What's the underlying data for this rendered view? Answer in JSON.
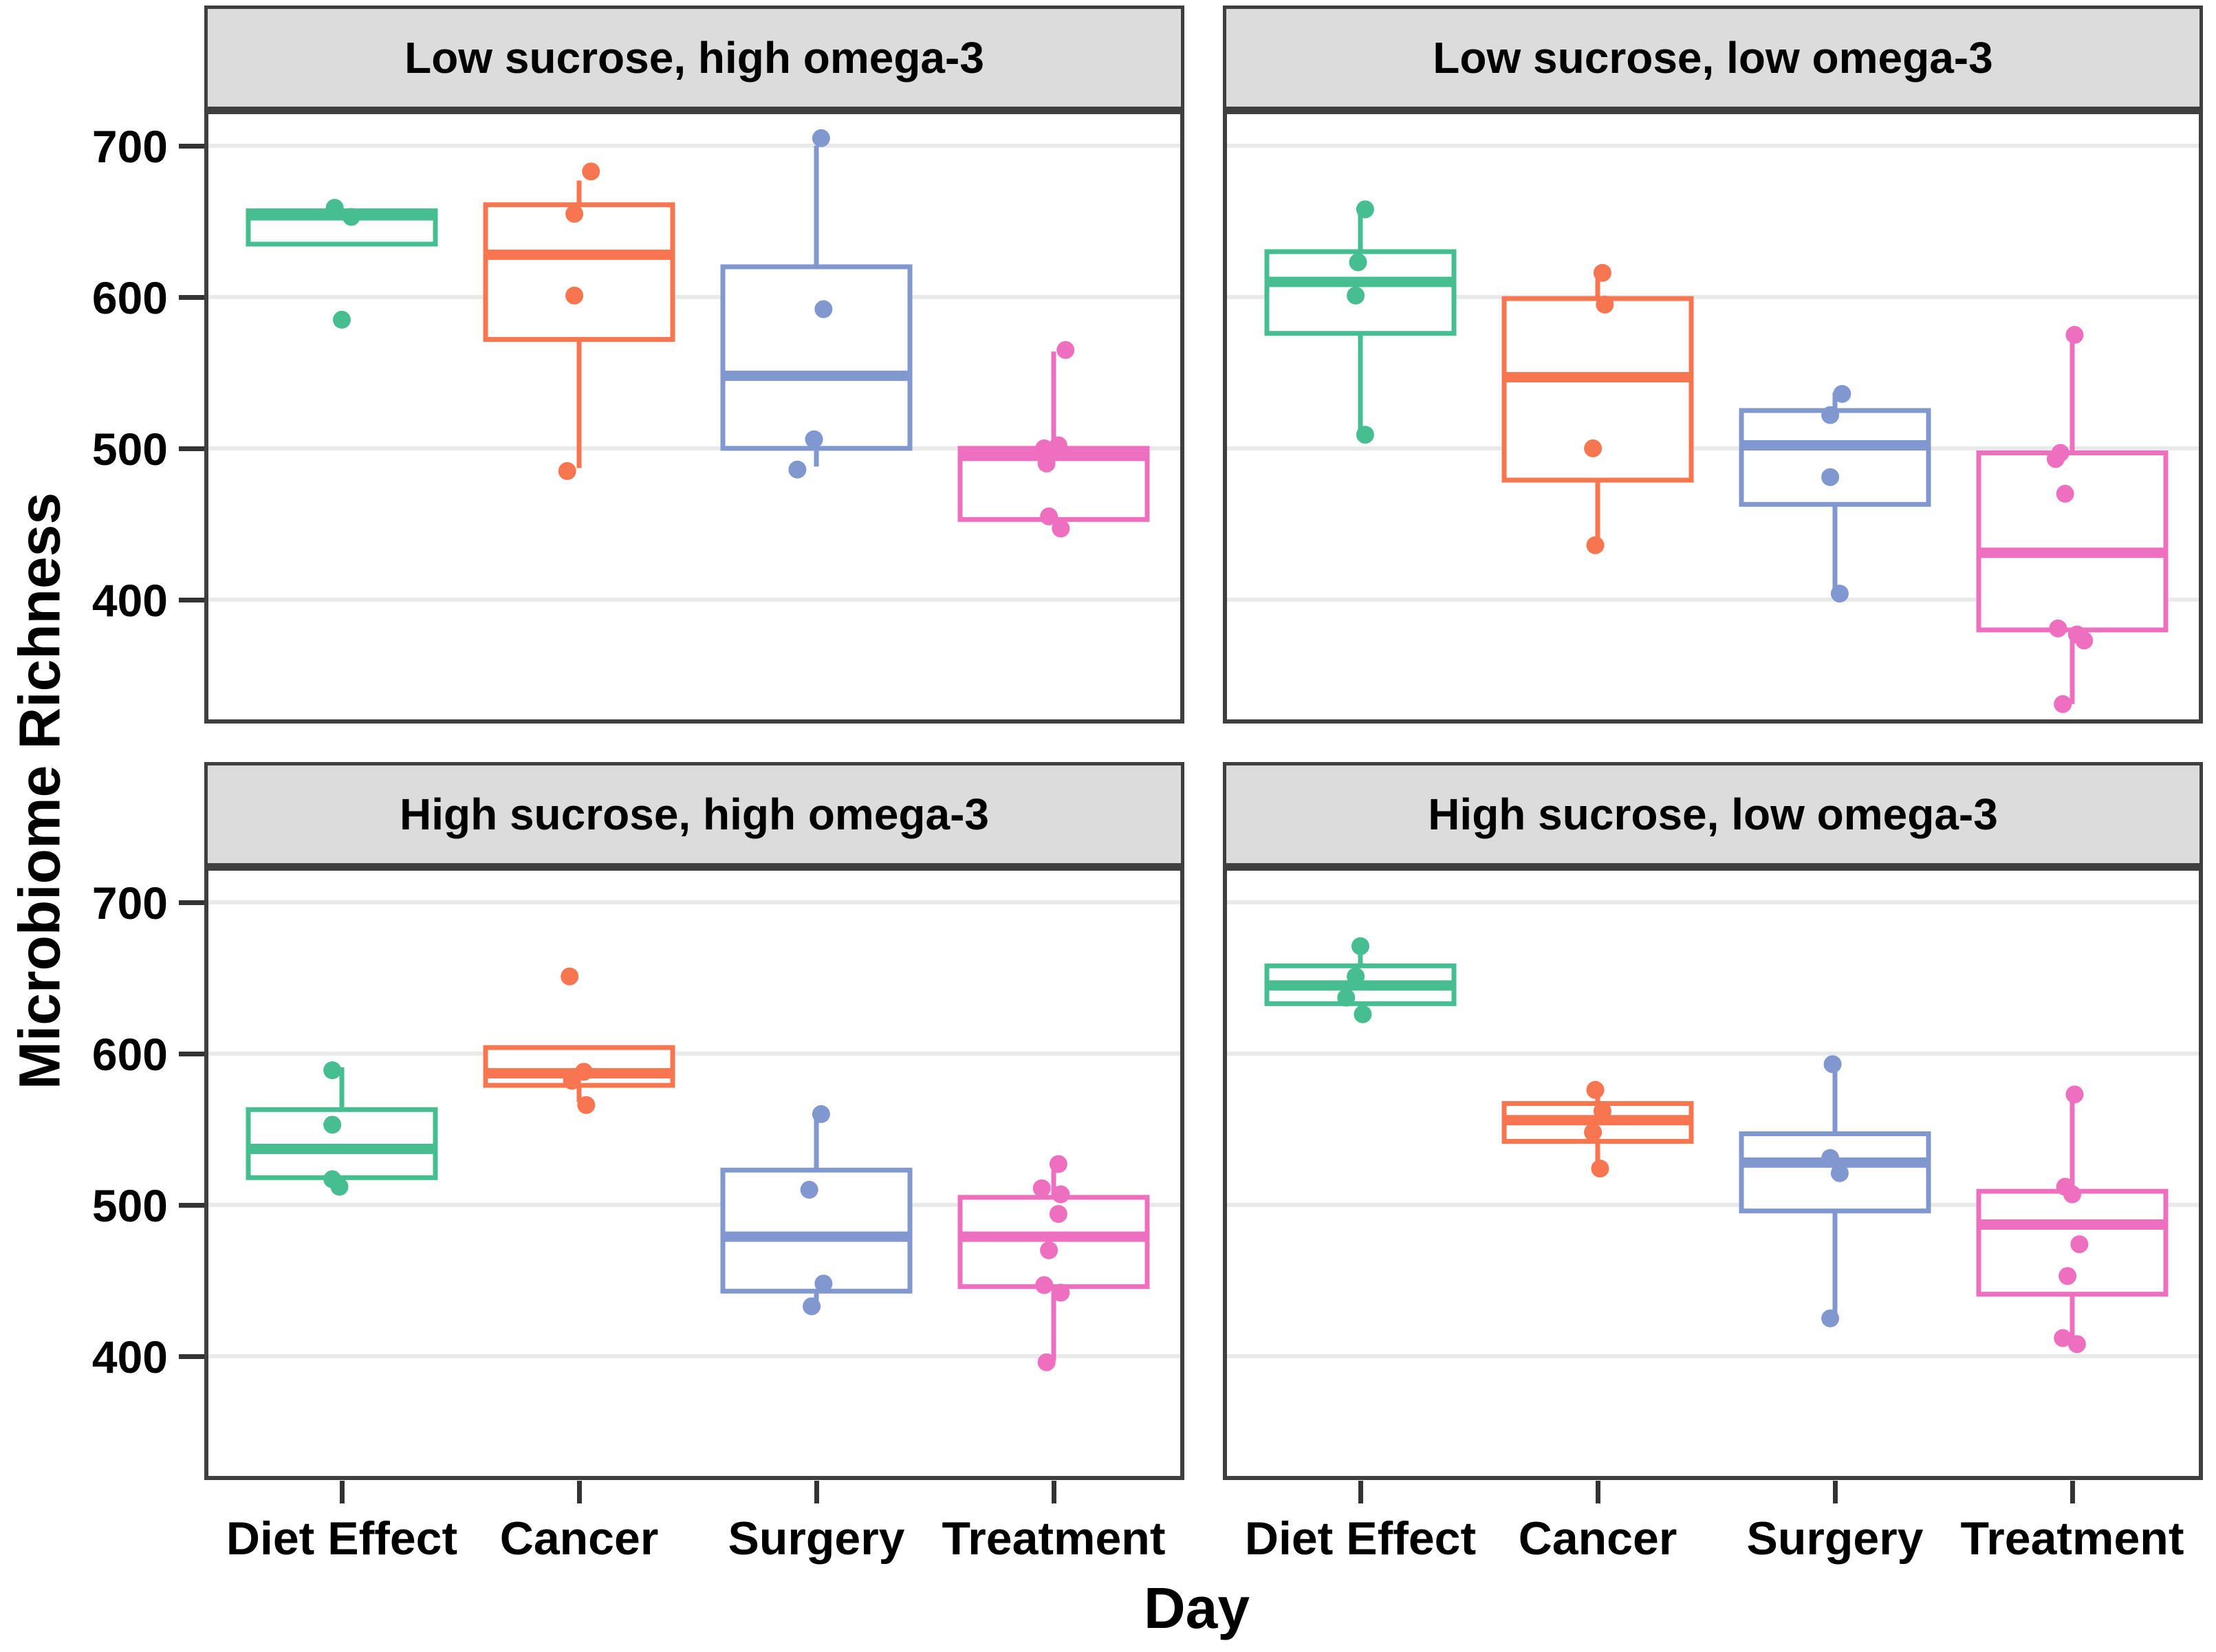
{
  "chart_data": {
    "type": "boxplot",
    "title": "",
    "xlabel": "Day",
    "ylabel": "Microbiome Richness",
    "x_categories": [
      "Diet Effect",
      "Cancer",
      "Surgery",
      "Treatment"
    ],
    "y_ticks": [
      700,
      600,
      500,
      400
    ],
    "y_tick_labels": [
      "700",
      "600",
      "500",
      "400"
    ],
    "ylim": [
      318,
      724
    ],
    "grid": "major-horizontal",
    "legend": "none",
    "style": {
      "gridline_color": "#E9E9E9",
      "panel_border_color": "#3F3F3F",
      "strip_background": "#DCDCDC",
      "tick_color": "#333333"
    },
    "series_colors": {
      "Diet Effect": "#47BD92",
      "Cancer": "#F8764F",
      "Surgery": "#8097CF",
      "Treatment": "#EE6FC0"
    },
    "facets": [
      {
        "title": "Low sucrose, high omega-3",
        "row": 0,
        "col": 0,
        "groups": [
          {
            "category": "Diet Effect",
            "color": "#47BD92",
            "box": {
              "min": 635,
              "q1": 635,
              "median": 654,
              "q3": 657,
              "max": 657
            },
            "points": [
              659,
              653,
              585
            ],
            "jitter": [
              -0.03,
              0.04,
              0.0
            ]
          },
          {
            "category": "Cancer",
            "color": "#F8764F",
            "box": {
              "min": 487,
              "q1": 572,
              "median": 628,
              "q3": 661,
              "max": 677
            },
            "points": [
              683,
              655,
              601,
              485
            ],
            "jitter": [
              0.05,
              -0.02,
              -0.02,
              -0.05
            ]
          },
          {
            "category": "Surgery",
            "color": "#8097CF",
            "box": {
              "min": 488,
              "q1": 500,
              "median": 548,
              "q3": 620,
              "max": 700
            },
            "points": [
              705,
              592,
              506,
              486
            ],
            "jitter": [
              0.02,
              0.03,
              -0.01,
              -0.08
            ]
          },
          {
            "category": "Treatment",
            "color": "#EE6FC0",
            "box": {
              "min": 453,
              "q1": 453,
              "median": 495,
              "q3": 500,
              "max": 564
            },
            "points": [
              565,
              502,
              500,
              490,
              455,
              447
            ],
            "jitter": [
              0.05,
              0.02,
              -0.04,
              -0.03,
              -0.02,
              0.03
            ]
          }
        ]
      },
      {
        "title": "Low sucrose, low omega-3",
        "row": 0,
        "col": 1,
        "groups": [
          {
            "category": "Diet Effect",
            "color": "#47BD92",
            "box": {
              "min": 506,
              "q1": 576,
              "median": 610,
              "q3": 630,
              "max": 657
            },
            "points": [
              658,
              623,
              601,
              509
            ],
            "jitter": [
              0.02,
              -0.01,
              -0.02,
              0.02
            ]
          },
          {
            "category": "Cancer",
            "color": "#F8764F",
            "box": {
              "min": 434,
              "q1": 479,
              "median": 547,
              "q3": 599,
              "max": 612
            },
            "points": [
              616,
              595,
              500,
              436
            ],
            "jitter": [
              0.02,
              0.03,
              -0.02,
              -0.01
            ]
          },
          {
            "category": "Surgery",
            "color": "#8097CF",
            "box": {
              "min": 405,
              "q1": 463,
              "median": 502,
              "q3": 525,
              "max": 537
            },
            "points": [
              536,
              522,
              481,
              404
            ],
            "jitter": [
              0.03,
              -0.02,
              -0.02,
              0.02
            ]
          },
          {
            "category": "Treatment",
            "color": "#EE6FC0",
            "box": {
              "min": 331,
              "q1": 380,
              "median": 431,
              "q3": 497,
              "max": 575
            },
            "points": [
              575,
              497,
              493,
              470,
              381,
              377,
              373,
              331
            ],
            "jitter": [
              0.01,
              -0.05,
              -0.07,
              -0.03,
              -0.06,
              0.02,
              0.05,
              -0.04
            ]
          }
        ]
      },
      {
        "title": "High sucrose, high omega-3",
        "row": 1,
        "col": 0,
        "groups": [
          {
            "category": "Diet Effect",
            "color": "#47BD92",
            "box": {
              "min": 518,
              "q1": 518,
              "median": 537,
              "q3": 563,
              "max": 591
            },
            "points": [
              589,
              553,
              517,
              512
            ],
            "jitter": [
              -0.04,
              -0.04,
              -0.04,
              -0.01
            ]
          },
          {
            "category": "Cancer",
            "color": "#F8764F",
            "box": {
              "min": 568,
              "q1": 579,
              "median": 587,
              "q3": 604,
              "max": 604
            },
            "points": [
              651,
              588,
              582,
              566
            ],
            "jitter": [
              -0.04,
              0.02,
              -0.03,
              0.03
            ]
          },
          {
            "category": "Surgery",
            "color": "#8097CF",
            "box": {
              "min": 437,
              "q1": 443,
              "median": 479,
              "q3": 523,
              "max": 561
            },
            "points": [
              560,
              510,
              448,
              433
            ],
            "jitter": [
              0.02,
              -0.03,
              0.03,
              -0.02
            ]
          },
          {
            "category": "Treatment",
            "color": "#EE6FC0",
            "box": {
              "min": 397,
              "q1": 446,
              "median": 479,
              "q3": 505,
              "max": 523
            },
            "points": [
              527,
              511,
              507,
              494,
              470,
              447,
              442,
              396
            ],
            "jitter": [
              0.02,
              -0.05,
              0.03,
              0.02,
              -0.02,
              -0.04,
              0.03,
              -0.03
            ]
          }
        ]
      },
      {
        "title": "High sucrose, low omega-3",
        "row": 1,
        "col": 1,
        "groups": [
          {
            "category": "Diet Effect",
            "color": "#47BD92",
            "box": {
              "min": 630,
              "q1": 633,
              "median": 645,
              "q3": 658,
              "max": 674
            },
            "points": [
              671,
              651,
              637,
              626
            ],
            "jitter": [
              0.0,
              -0.02,
              -0.06,
              0.01
            ]
          },
          {
            "category": "Cancer",
            "color": "#F8764F",
            "box": {
              "min": 525,
              "q1": 542,
              "median": 556,
              "q3": 567,
              "max": 572
            },
            "points": [
              576,
              562,
              548,
              524
            ],
            "jitter": [
              -0.01,
              0.02,
              -0.02,
              0.01
            ]
          },
          {
            "category": "Surgery",
            "color": "#8097CF",
            "box": {
              "min": 426,
              "q1": 496,
              "median": 528,
              "q3": 547,
              "max": 594
            },
            "points": [
              593,
              531,
              521,
              425
            ],
            "jitter": [
              -0.01,
              -0.02,
              0.02,
              -0.02
            ]
          },
          {
            "category": "Treatment",
            "color": "#EE6FC0",
            "box": {
              "min": 409,
              "q1": 441,
              "median": 487,
              "q3": 509,
              "max": 573
            },
            "points": [
              573,
              512,
              507,
              474,
              453,
              412,
              408
            ],
            "jitter": [
              0.01,
              -0.03,
              0.0,
              0.03,
              -0.02,
              -0.04,
              0.02
            ]
          }
        ]
      }
    ]
  }
}
